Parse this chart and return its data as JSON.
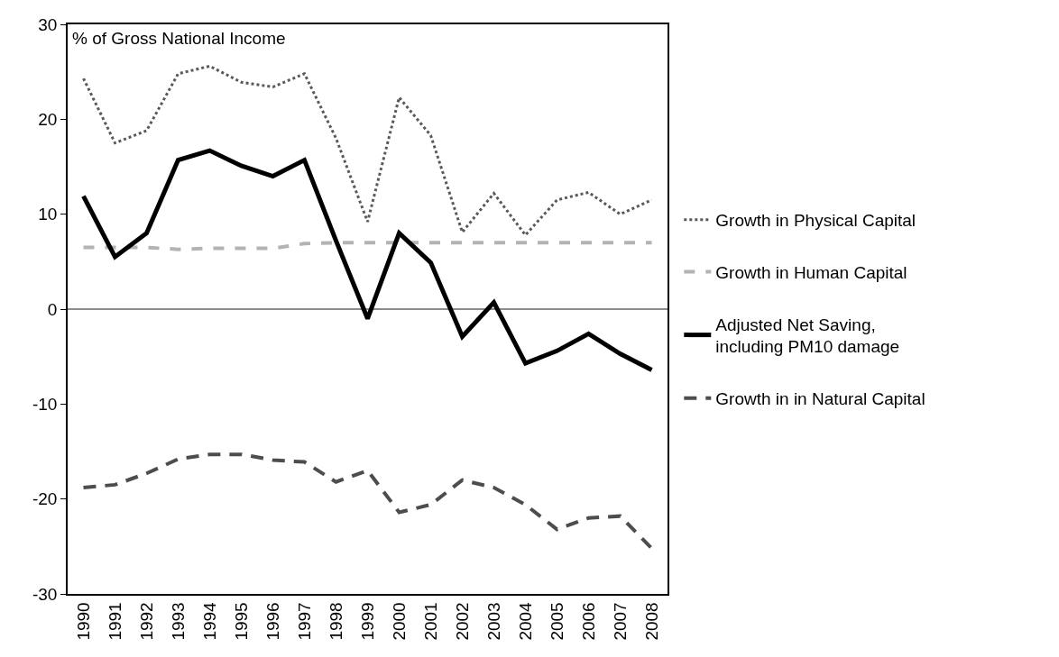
{
  "chart_data": {
    "type": "line",
    "categories": [
      "1990",
      "1991",
      "1992",
      "1993",
      "1994",
      "1995",
      "1996",
      "1997",
      "1998",
      "1999",
      "2000",
      "2001",
      "2002",
      "2003",
      "2004",
      "2005",
      "2006",
      "2007",
      "2008"
    ],
    "series": [
      {
        "name": "Growth in Physical Capital",
        "color": "#595959",
        "line_style": "dotted",
        "values": [
          24.3,
          17.5,
          18.8,
          24.8,
          25.6,
          23.9,
          23.4,
          24.8,
          18.0,
          9.2,
          22.3,
          18.3,
          8.1,
          12.2,
          7.8,
          11.5,
          12.3,
          10.0,
          11.5
        ]
      },
      {
        "name": "Growth in Human Capital",
        "color": "#b3b3b3",
        "line_style": "dashed",
        "values": [
          6.5,
          6.5,
          6.5,
          6.3,
          6.4,
          6.4,
          6.4,
          6.9,
          7.0,
          7.0,
          7.0,
          7.0,
          7.0,
          7.0,
          7.0,
          7.0,
          7.0,
          7.0,
          7.0
        ]
      },
      {
        "name": "Adjusted Net Saving, including PM10 damage",
        "color": "#000000",
        "line_style": "solid",
        "values": [
          11.9,
          5.5,
          8.0,
          15.7,
          16.7,
          15.1,
          14.0,
          15.7,
          7.2,
          -1.0,
          8.0,
          4.9,
          -2.9,
          0.7,
          -5.7,
          -4.4,
          -2.6,
          -4.7,
          -6.4
        ]
      },
      {
        "name": "Growth in in Natural Capital",
        "color": "#4d4d4d",
        "line_style": "dashed",
        "values": [
          -18.8,
          -18.5,
          -17.3,
          -15.8,
          -15.3,
          -15.3,
          -15.9,
          -16.1,
          -18.2,
          -17.0,
          -21.4,
          -20.6,
          -18.0,
          -18.8,
          -20.6,
          -23.2,
          -22.0,
          -21.8,
          -25.2
        ]
      }
    ],
    "annotations": [
      "% of Gross National Income"
    ],
    "ylim": [
      -30,
      30
    ],
    "yticks": [
      -30,
      -20,
      -10,
      0,
      10,
      20,
      30
    ],
    "ref_lines": [
      {
        "axis": "y",
        "value": 0,
        "color": "#8c8c8c"
      }
    ],
    "grid": false,
    "legend": "right",
    "marker": "none"
  }
}
